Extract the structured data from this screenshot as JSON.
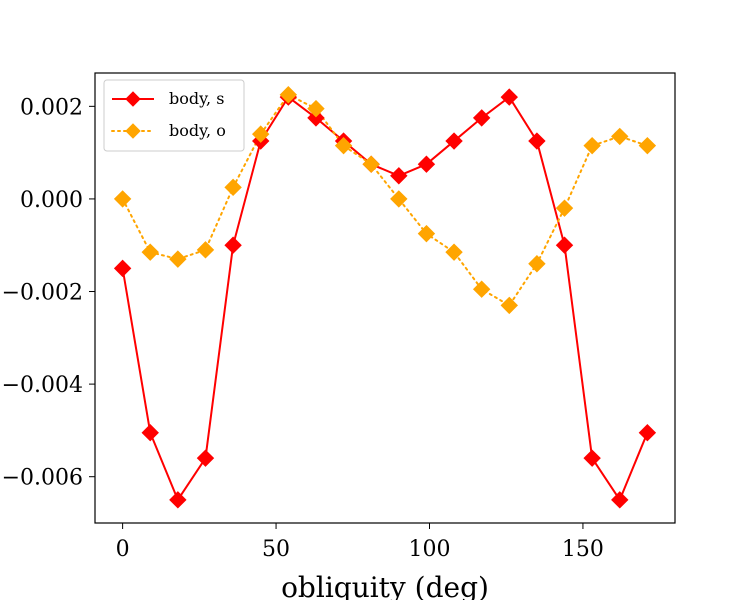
{
  "chart_data": {
    "type": "line",
    "title": "",
    "xlabel": "obliquity (deg)",
    "ylabel": "",
    "xlim": [
      -9,
      180
    ],
    "ylim": [
      -0.007,
      0.00272
    ],
    "xticks": [
      0,
      50,
      100,
      150
    ],
    "xtick_labels": [
      "0",
      "50",
      "100",
      "150"
    ],
    "yticks": [
      0.002,
      0.0,
      -0.002,
      -0.004,
      -0.006
    ],
    "ytick_labels": [
      "0.002",
      "0.000",
      "−0.002",
      "−0.004",
      "−0.006"
    ],
    "grid": false,
    "legend_position": "top-left",
    "series": [
      {
        "name": "body, s",
        "color": "#ff0000",
        "line_style": "solid",
        "marker": "diamond",
        "x": [
          0,
          9,
          18,
          27,
          36,
          45,
          54,
          63,
          72,
          81,
          90,
          99,
          108,
          117,
          126,
          135,
          144,
          153,
          162,
          171
        ],
        "y": [
          -0.0015,
          -0.00505,
          -0.0065,
          -0.0056,
          -0.001,
          0.00125,
          0.0022,
          0.00175,
          0.00125,
          0.00075,
          0.0005,
          0.00075,
          0.00125,
          0.00175,
          0.0022,
          0.00125,
          -0.001,
          -0.0056,
          -0.0065,
          -0.00505
        ]
      },
      {
        "name": "body, o",
        "color": "#ffa500",
        "line_style": "dotted",
        "marker": "diamond",
        "x": [
          0,
          9,
          18,
          27,
          36,
          45,
          54,
          63,
          72,
          81,
          90,
          99,
          108,
          117,
          126,
          135,
          144,
          153,
          162,
          171
        ],
        "y": [
          0.0,
          -0.00115,
          -0.0013,
          -0.0011,
          0.00025,
          0.0014,
          0.00225,
          0.00195,
          0.00115,
          0.00075,
          0.0,
          -0.00075,
          -0.00115,
          -0.00195,
          -0.0023,
          -0.0014,
          -0.0002,
          0.00115,
          0.00135,
          0.00115
        ]
      }
    ]
  }
}
